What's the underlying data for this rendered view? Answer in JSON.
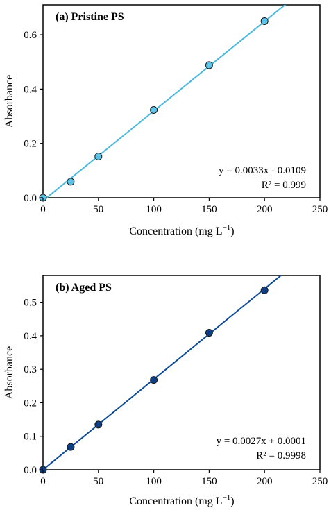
{
  "chart_data": [
    {
      "type": "scatter",
      "title": "(a) Pristine PS",
      "xlabel": "Concentration (mg L",
      "xlabel_sup": "−1",
      "xlabel_close": ")",
      "ylabel": "Absorbance",
      "xlim": [
        0,
        250
      ],
      "ylim": [
        0,
        0.71
      ],
      "xticks": [
        0,
        50,
        100,
        150,
        200,
        250
      ],
      "xtick_labels": [
        "0",
        "50",
        "100",
        "150",
        "200",
        "250"
      ],
      "yticks": [
        0.0,
        0.2,
        0.4,
        0.6
      ],
      "ytick_labels": [
        "0.0",
        "0.2",
        "0.4",
        "0.6"
      ],
      "grid": false,
      "series": [
        {
          "x": [
            0,
            25,
            50,
            100,
            150,
            200
          ],
          "y": [
            0.0,
            0.059,
            0.152,
            0.323,
            0.488,
            0.65
          ],
          "color": "#5bc3e8",
          "fit": {
            "slope": 0.0033,
            "intercept": -0.0109
          }
        }
      ],
      "annotations": [
        "y = 0.0033x - 0.0109",
        "R² = 0.999"
      ],
      "line_color": "#49b8e0"
    },
    {
      "type": "scatter",
      "title": "(b) Aged PS",
      "xlabel": "Concentration (mg L",
      "xlabel_sup": "−1",
      "xlabel_close": ")",
      "ylabel": "Absorbance",
      "xlim": [
        0,
        250
      ],
      "ylim": [
        0,
        0.58
      ],
      "xticks": [
        0,
        50,
        100,
        150,
        200,
        250
      ],
      "xtick_labels": [
        "0",
        "50",
        "100",
        "150",
        "200",
        "250"
      ],
      "yticks": [
        0.0,
        0.1,
        0.2,
        0.3,
        0.4,
        0.5
      ],
      "ytick_labels": [
        "0.0",
        "0.1",
        "0.2",
        "0.3",
        "0.4",
        "0.5"
      ],
      "grid": false,
      "series": [
        {
          "x": [
            0,
            25,
            50,
            100,
            150,
            200
          ],
          "y": [
            0.0,
            0.068,
            0.135,
            0.268,
            0.409,
            0.536
          ],
          "color": "#0d3f86",
          "fit": {
            "slope": 0.0027,
            "intercept": 0.0001
          }
        }
      ],
      "annotations": [
        "y = 0.0027x + 0.0001",
        "R² = 0.9998"
      ],
      "line_color": "#0d4a96"
    }
  ]
}
